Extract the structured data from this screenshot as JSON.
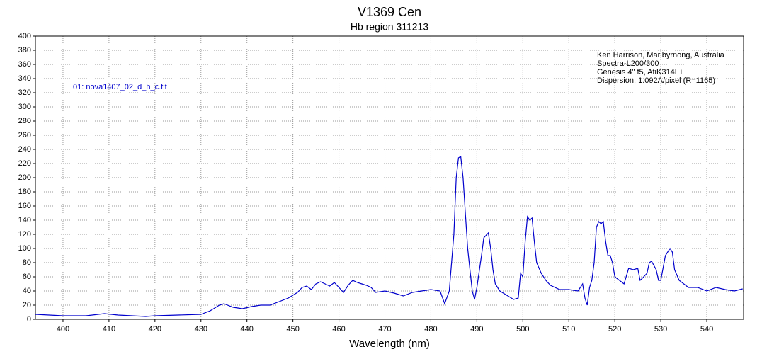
{
  "chart_data": {
    "type": "line",
    "title": "V1369 Cen",
    "subtitle": "Hb region 311213",
    "x_label": "Wavelength (nm)",
    "annotations": [
      "01: nova1407_02_d_h_c.fit",
      "Ken Harrison, Maribyrnong, Australia",
      "Spectra-L200/300",
      "Genesis 4\" f5, AtiK314L+",
      "Dispersion: 1.092A/pixel (R=1165)"
    ],
    "xlim": [
      394,
      548
    ],
    "ylim": [
      0,
      400
    ],
    "xticks": [
      400,
      410,
      420,
      430,
      440,
      450,
      460,
      470,
      480,
      490,
      500,
      510,
      520,
      530,
      540
    ],
    "yticks": [
      0,
      20,
      40,
      60,
      80,
      100,
      120,
      140,
      160,
      180,
      200,
      220,
      240,
      260,
      280,
      300,
      320,
      340,
      360,
      380,
      400
    ],
    "grid": true,
    "series": [
      {
        "name": "01: nova1407_02_d_h_c.fit",
        "color": "#0000cc",
        "x": [
          394,
          400,
          405,
          409,
          412,
          415,
          418,
          420,
          425,
          430,
          432,
          434,
          435,
          437,
          439,
          441,
          443,
          445,
          447,
          449,
          451,
          452,
          453,
          454,
          455,
          456,
          457,
          458,
          459,
          460,
          461,
          462,
          463,
          464,
          465,
          466,
          467,
          468,
          470,
          472,
          474,
          476,
          478,
          480,
          482,
          483,
          484,
          485,
          485.5,
          486,
          486.5,
          487,
          487.5,
          488,
          488.5,
          489,
          489.5,
          490,
          491,
          491.5,
          492.5,
          493,
          493.5,
          494,
          495,
          497,
          498,
          499,
          499.5,
          500,
          500.5,
          501,
          501.5,
          502,
          502.5,
          503,
          504,
          505,
          506,
          508,
          510,
          512,
          513,
          513.5,
          514,
          514.5,
          515,
          515.5,
          516,
          516.5,
          517,
          517.5,
          518,
          518.5,
          519,
          519.5,
          520,
          521,
          522,
          523,
          524,
          525,
          525.5,
          526,
          527,
          527.5,
          528,
          529,
          529.5,
          530,
          531,
          532,
          532.5,
          533,
          534,
          536,
          538,
          540,
          542,
          544,
          546,
          547.8
        ],
        "values": [
          7,
          5,
          5,
          8,
          6,
          5,
          4,
          5,
          6,
          7,
          12,
          20,
          22,
          17,
          15,
          18,
          20,
          20,
          25,
          30,
          38,
          45,
          47,
          42,
          50,
          53,
          50,
          47,
          52,
          45,
          38,
          48,
          55,
          52,
          50,
          48,
          45,
          38,
          40,
          37,
          33,
          38,
          40,
          42,
          40,
          22,
          40,
          120,
          200,
          228,
          230,
          200,
          150,
          100,
          70,
          40,
          28,
          45,
          90,
          115,
          122,
          100,
          70,
          50,
          40,
          32,
          28,
          30,
          65,
          60,
          110,
          145,
          140,
          143,
          110,
          80,
          65,
          55,
          48,
          42,
          42,
          40,
          50,
          30,
          20,
          45,
          55,
          80,
          130,
          138,
          135,
          138,
          110,
          90,
          90,
          80,
          60,
          55,
          50,
          72,
          70,
          72,
          55,
          58,
          65,
          80,
          82,
          70,
          55,
          55,
          90,
          100,
          95,
          70,
          55,
          45,
          45,
          40,
          45,
          42,
          40,
          43
        ]
      }
    ]
  }
}
